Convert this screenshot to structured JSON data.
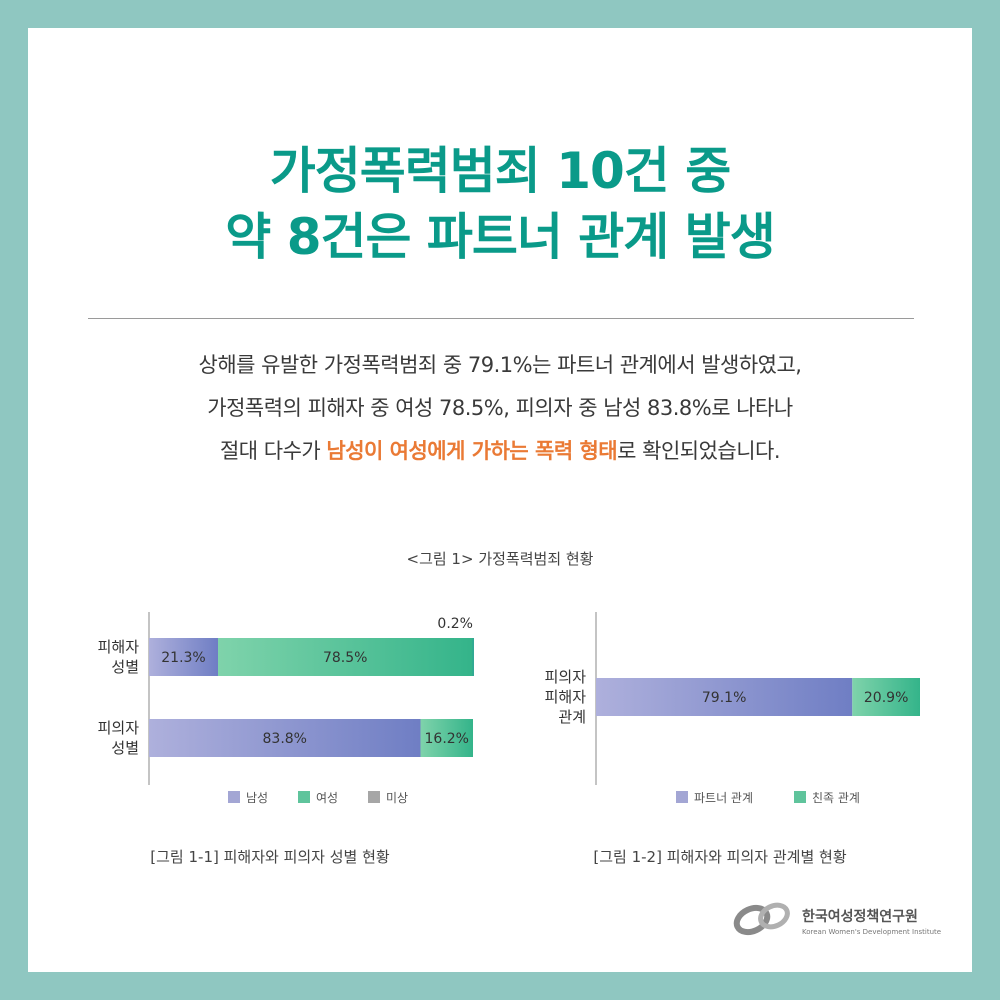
{
  "headline": {
    "line1": "가정폭력범죄 10건 중",
    "line2": "약 8건은 파트너 관계 발생"
  },
  "body": {
    "line1": "상해를 유발한 가정폭력범죄 중 79.1%는 파트너 관계에서 발생하였고,",
    "line2": "가정폭력의 피해자 중 여성 78.5%, 피의자 중 남성 83.8%로 나타나",
    "line3_pre": "절대 다수가 ",
    "line3_highlight": "남성이 여성에게 가하는 폭력 형태",
    "line3_post": "로 확인되었습니다."
  },
  "figure_title": "<그림 1> 가정폭력범죄 현황",
  "colors": {
    "headline": "#0a9a89",
    "highlight": "#ea7a35",
    "male": "#a3a6d4",
    "female": "#5fc49c",
    "unknown": "#a6a6a6",
    "partner": "#a3a6d4",
    "relative": "#5fc49c",
    "background": "#8fc7c1"
  },
  "chart_data": [
    {
      "type": "bar",
      "orientation": "horizontal",
      "stacked": true,
      "caption": "[그림 1-1] 피해자와 피의자 성별 현황",
      "categories": [
        [
          "피해자",
          "성별"
        ],
        [
          "피의자",
          "성별"
        ]
      ],
      "series": [
        {
          "name": "남성",
          "values": [
            21.3,
            83.8
          ],
          "labels": [
            "21.3%",
            "83.8%"
          ]
        },
        {
          "name": "여성",
          "values": [
            78.5,
            16.2
          ],
          "labels": [
            "78.5%",
            "16.2%"
          ]
        },
        {
          "name": "미상",
          "values": [
            0.2,
            0
          ],
          "labels": [
            "0.2%",
            ""
          ]
        }
      ],
      "xlim": [
        0,
        100
      ],
      "legend": "bottom"
    },
    {
      "type": "bar",
      "orientation": "horizontal",
      "stacked": true,
      "caption": "[그림 1-2] 피해자와 피의자 관계별 현황",
      "categories": [
        [
          "피의자",
          "피해자",
          "관계"
        ]
      ],
      "series": [
        {
          "name": "파트너 관계",
          "values": [
            79.1
          ],
          "labels": [
            "79.1%"
          ]
        },
        {
          "name": "친족 관계",
          "values": [
            20.9
          ],
          "labels": [
            "20.9%"
          ]
        }
      ],
      "xlim": [
        0,
        100
      ],
      "legend": "bottom"
    }
  ],
  "logo": {
    "name_ko": "한국여성정책연구원",
    "name_en": "Korean Women's Development Institute"
  }
}
